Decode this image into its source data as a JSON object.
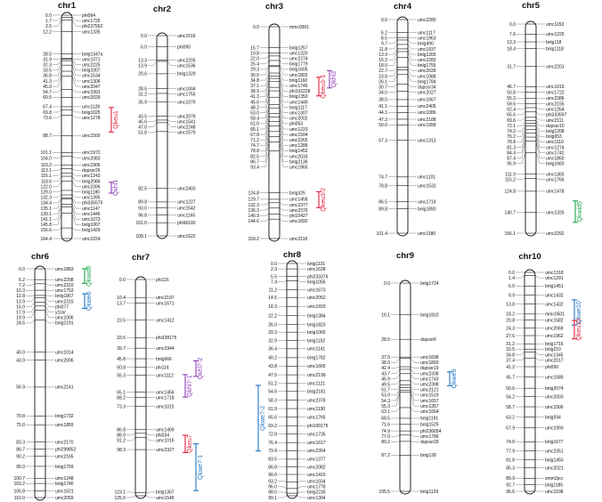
{
  "chromosomes": [
    {
      "name": "chr1",
      "max": 164.4,
      "markers": [
        [
          "0.0",
          "phi064"
        ],
        [
          "1.7",
          "umc1725"
        ],
        [
          "3.5",
          "phi227562"
        ],
        [
          "12.2",
          "umc1335"
        ],
        [
          "28.5",
          "bnlg1347a"
        ],
        [
          "31.9",
          "umc1071"
        ],
        [
          "32.3",
          "umc2225"
        ],
        [
          "33.5",
          "bnlg1007"
        ],
        [
          "36.8",
          "umc1534"
        ],
        [
          "41.3",
          "umc1306"
        ],
        [
          "45.0",
          "umc2047"
        ],
        [
          "54.7",
          "umc1991"
        ],
        [
          "60.5",
          "umc2029"
        ],
        [
          "67.4",
          "umc1128"
        ],
        [
          "69.8",
          "bnlg1025"
        ],
        [
          "73.6",
          "umc1278"
        ],
        [
          "88.7",
          "umc1500"
        ],
        [
          "101.1",
          "umc1972"
        ],
        [
          "104.0",
          "umc2083"
        ],
        [
          "110.2",
          "umc1906"
        ],
        [
          "113.1",
          "dupssr26"
        ],
        [
          "116.1",
          "umc1243"
        ],
        [
          "118.6",
          "bnlg2086"
        ],
        [
          "122.0",
          "umc2396"
        ],
        [
          "129.0",
          "bnlg1180"
        ],
        [
          "132.3",
          "umc1395"
        ],
        [
          "134.4",
          "phi335575"
        ],
        [
          "135.1",
          "umc1147"
        ],
        [
          "139.1",
          "umc1446"
        ],
        [
          "141.1",
          "umc1073"
        ],
        [
          "145.8",
          "bnlg1007"
        ],
        [
          "156.6",
          "bnlg1429"
        ],
        [
          "164.4",
          "umc2224"
        ]
      ]
    },
    {
      "name": "chr2",
      "max": 108.1,
      "markers": [
        [
          "0.0",
          "umc1516"
        ],
        [
          "6.0",
          "phi090"
        ],
        [
          "13.3",
          "umc2205"
        ],
        [
          "13.9",
          "umc1536"
        ],
        [
          "20.6",
          "bnlg1329"
        ],
        [
          "28.6",
          "umc1004"
        ],
        [
          "31.2",
          "umc1755"
        ],
        [
          "35.9",
          "umc1079"
        ],
        [
          "43.5",
          "umc2079"
        ],
        [
          "45.6",
          "umc1541"
        ],
        [
          "47.0",
          "umc2248"
        ],
        [
          "51.8",
          "umc1579"
        ],
        [
          "82.5",
          "umc2403"
        ],
        [
          "89.8",
          "umc1227"
        ],
        [
          "93.0",
          "umc1542"
        ],
        [
          "96.8",
          "umc1165"
        ],
        [
          "101.0",
          "phi96100"
        ],
        [
          "108.1",
          "umc1622"
        ]
      ]
    },
    {
      "name": "chr3",
      "max": 159.2,
      "markers": [
        [
          "0.0",
          "mmc0001"
        ],
        [
          "15.7",
          "bnlg1257"
        ],
        [
          "19.8",
          "umc1320"
        ],
        [
          "22.0",
          "umc2274"
        ],
        [
          "25.4",
          "bnlg1779"
        ],
        [
          "29.3",
          "bnlg1605"
        ],
        [
          "30.0",
          "umc1802"
        ],
        [
          "34.8",
          "bnlg1160"
        ],
        [
          "37.1",
          "umc1745"
        ],
        [
          "38.9",
          "phi102228"
        ],
        [
          "41.3",
          "bnlg1350"
        ],
        [
          "45.6",
          "umc1449"
        ],
        [
          "48.2",
          "bnlg1117"
        ],
        [
          "53.0",
          "umc1307"
        ],
        [
          "58.4",
          "umc2002"
        ],
        [
          "61.0",
          "phi053"
        ],
        [
          "65.1",
          "umc1223"
        ],
        [
          "67.8",
          "umc1504"
        ],
        [
          "71.2",
          "umc2265"
        ],
        [
          "74.7",
          "umc1286"
        ],
        [
          "78.8",
          "bnlg1452"
        ],
        [
          "82.5",
          "umc2033"
        ],
        [
          "86.7",
          "bnlg2136"
        ],
        [
          "93.4",
          "umc1965"
        ],
        [
          "124.8",
          "bnlg325"
        ],
        [
          "129.7",
          "umc1458"
        ],
        [
          "132.3",
          "umc2377"
        ],
        [
          "136.3",
          "umc2376"
        ],
        [
          "140.9",
          "phi10427"
        ],
        [
          "144.6",
          "umc1892"
        ],
        [
          "159.2",
          "umc2118"
        ]
      ]
    },
    {
      "name": "chr4",
      "max": 101.4,
      "markers": [
        [
          "0.0",
          "umc2280"
        ],
        [
          "6.2",
          "umc1117"
        ],
        [
          "8.5",
          "umc1963"
        ],
        [
          "9.7",
          "bnlg490"
        ],
        [
          "11.8",
          "umc1937"
        ],
        [
          "13.9",
          "bnlg1265"
        ],
        [
          "15.2",
          "umc2283"
        ],
        [
          "18.0",
          "bnlg1755"
        ],
        [
          "22.7",
          "umc2039"
        ],
        [
          "23.8",
          "umc1088"
        ],
        [
          "26.1",
          "bnlg1784"
        ],
        [
          "30.7",
          "dupssr34"
        ],
        [
          "34.0",
          "umc2027"
        ],
        [
          "38.0",
          "umc1667"
        ],
        [
          "41.1",
          "umc2405"
        ],
        [
          "44.1",
          "umc1086"
        ],
        [
          "47.3",
          "umc2188"
        ],
        [
          "50.0",
          "umc1999"
        ],
        [
          "57.3",
          "umc1313"
        ],
        [
          "74.7",
          "umc1101"
        ],
        [
          "78.8",
          "umc1532"
        ],
        [
          "86.5",
          "umc1719"
        ],
        [
          "89.8",
          "bnlg1890"
        ],
        [
          "101.4",
          "umc1180"
        ]
      ]
    },
    {
      "name": "chr5",
      "max": 156.1,
      "markers": [
        [
          "0.0",
          "umc1153"
        ],
        [
          "7.6",
          "umc1225"
        ],
        [
          "13.3",
          "bnlg118"
        ],
        [
          "18.4",
          "bnlg1118"
        ],
        [
          "31.7",
          "umc2201"
        ],
        [
          "46.7",
          "umc1019"
        ],
        [
          "50.8",
          "umc1722"
        ],
        [
          "55.3",
          "umc2386"
        ],
        [
          "59.6",
          "umc2155"
        ],
        [
          "62.4",
          "umc1264"
        ],
        [
          "65.6",
          "phi333597"
        ],
        [
          "69.6",
          "umc2111"
        ],
        [
          "72.1",
          "dupssr10"
        ],
        [
          "74.2",
          "bnlg1208"
        ],
        [
          "76.2",
          "bnlg653"
        ],
        [
          "78.8",
          "umc1110"
        ],
        [
          "81.3",
          "umc1274"
        ],
        [
          "84.4",
          "umc1742"
        ],
        [
          "87.4",
          "umc1850"
        ],
        [
          "95.9",
          "bnlg1660"
        ],
        [
          "111.9",
          "umc1365"
        ],
        [
          "115.2",
          "umc1766"
        ],
        [
          "124.8",
          "umc1478"
        ],
        [
          "140.7",
          "umc1325"
        ],
        [
          "156.1",
          "umc2292"
        ]
      ]
    },
    {
      "name": "chr6",
      "max": 110.0,
      "markers": [
        [
          "0.0",
          "umc1883"
        ],
        [
          "5.2",
          "umc2208"
        ],
        [
          "7.2",
          "umc2310"
        ],
        [
          "10.3",
          "umc1753"
        ],
        [
          "12.8",
          "bnlg1867"
        ],
        [
          "13.9",
          "umc2315"
        ],
        [
          "16.0",
          "phi077"
        ],
        [
          "17.9",
          "y1ssr"
        ],
        [
          "19.9",
          "umc1006"
        ],
        [
          "24.6",
          "bnlg2191"
        ],
        [
          "40.0",
          "umc1014"
        ],
        [
          "43.9",
          "umc2006"
        ],
        [
          "56.9",
          "umc2141"
        ],
        [
          "70.8",
          "bnlg1732"
        ],
        [
          "75.0",
          "umc1859"
        ],
        [
          "83.3",
          "umc2170"
        ],
        [
          "86.7",
          "phi299852"
        ],
        [
          "90.2",
          "umc2165"
        ],
        [
          "95.0",
          "bnlg1759"
        ],
        [
          "100.7",
          "umc1248"
        ],
        [
          "103.2",
          "bnlg1740"
        ],
        [
          "106.8",
          "umc1621"
        ],
        [
          "110.0",
          "umc2059"
        ]
      ]
    },
    {
      "name": "chr7",
      "max": 125.0,
      "markers": [
        [
          "0.0",
          "phi116"
        ],
        [
          "10.4",
          "umc2197"
        ],
        [
          "13.7",
          "umc1671"
        ],
        [
          "23.5",
          "umc1412"
        ],
        [
          "33.6",
          "phi328175"
        ],
        [
          "39.7",
          "umc1944"
        ],
        [
          "45.8",
          "bnlg666"
        ],
        [
          "50.8",
          "phi114"
        ],
        [
          "55.3",
          "umc1112"
        ],
        [
          "65.1",
          "umc1456"
        ],
        [
          "68.2",
          "umc1718"
        ],
        [
          "73.3",
          "umc1015"
        ],
        [
          "86.8",
          "umc1409"
        ],
        [
          "88.9",
          "phi034"
        ],
        [
          "91.2",
          "umc1016"
        ],
        [
          "98.3",
          "umc2327"
        ],
        [
          "123.1",
          "bnlg1367"
        ],
        [
          "125.0",
          "umc1545"
        ]
      ]
    },
    {
      "name": "chr8",
      "max": 99.1,
      "markers": [
        [
          "0.0",
          "bnlg1131"
        ],
        [
          "2.3",
          "umc1638"
        ],
        [
          "5.5",
          "phi233376"
        ],
        [
          "7.4",
          "bnlg1056"
        ],
        [
          "11.2",
          "umc1673"
        ],
        [
          "14.5",
          "umc2052"
        ],
        [
          "18.3",
          "umc1933"
        ],
        [
          "22.2",
          "bnlg1384"
        ],
        [
          "26.0",
          "bnlg1823"
        ],
        [
          "29.3",
          "bnlg1065"
        ],
        [
          "32.9",
          "bnlg1152"
        ],
        [
          "36.4",
          "umc1141"
        ],
        [
          "40.2",
          "bnlg1782"
        ],
        [
          "43.8",
          "umc1665"
        ],
        [
          "47.5",
          "umc2199"
        ],
        [
          "51.2",
          "umc1121"
        ],
        [
          "54.6",
          "bnlg2181"
        ],
        [
          "58.3",
          "umc2378"
        ],
        [
          "61.9",
          "umc1130"
        ],
        [
          "65.6",
          "umc1765"
        ],
        [
          "69.2",
          "phi100175"
        ],
        [
          "72.8",
          "umc1735"
        ],
        [
          "76.4",
          "umc1617"
        ],
        [
          "79.9",
          "umc2354"
        ],
        [
          "83.5",
          "umc1377"
        ],
        [
          "86.8",
          "umc2082"
        ],
        [
          "90.0",
          "umc1415"
        ],
        [
          "93.2",
          "umc1034"
        ],
        [
          "96.0",
          "umc1778"
        ],
        [
          "98.0",
          "bnlg2235"
        ],
        [
          "99.1",
          "umc1304"
        ]
      ]
    },
    {
      "name": "chr9",
      "max": 105.5,
      "markers": [
        [
          "0.0",
          "bnlg1724"
        ],
        [
          "16.1",
          "bnlg1810"
        ],
        [
          "28.5",
          "dupssr6"
        ],
        [
          "37.5",
          "umc1698"
        ],
        [
          "38.0",
          "umc1893"
        ],
        [
          "42.4",
          "dupssr19"
        ],
        [
          "43.7",
          "umc2338"
        ],
        [
          "45.9",
          "umc1743"
        ],
        [
          "49.5",
          "umc2398"
        ],
        [
          "51.7",
          "umc2121"
        ],
        [
          "53.0",
          "umc1519"
        ],
        [
          "54.3",
          "umc1657"
        ],
        [
          "55.3",
          "umc1357"
        ],
        [
          "63.1",
          "umc1654"
        ],
        [
          "68.5",
          "bnlg1191"
        ],
        [
          "71.6",
          "bnlg1525"
        ],
        [
          "74.9",
          "phi236654"
        ],
        [
          "77.0",
          "umc1789"
        ],
        [
          "80.2",
          "dupssr29"
        ],
        [
          "87.2",
          "bnlg128"
        ],
        [
          "105.5",
          "bnlg1129"
        ]
      ]
    },
    {
      "name": "chr10",
      "max": 95.6,
      "markers": [
        [
          "0.0",
          "umc1318"
        ],
        [
          "1.4",
          "umc1291"
        ],
        [
          "6.0",
          "bnlg1451"
        ],
        [
          "9.9",
          "umc1432"
        ],
        [
          "13.8",
          "umc1432"
        ],
        [
          "18.2",
          "mmc0501"
        ],
        [
          "20.8",
          "umc1582"
        ],
        [
          "24.3",
          "umc2069"
        ],
        [
          "27.6",
          "umc1962"
        ],
        [
          "31.2",
          "bnlg1716"
        ],
        [
          "33.5",
          "bnlg210"
        ],
        [
          "34.8",
          "umc1345"
        ],
        [
          "37.4",
          "umc2017"
        ],
        [
          "41.2",
          "phi050"
        ],
        [
          "45.7",
          "umc1589"
        ],
        [
          "50.6",
          "bnlg2074"
        ],
        [
          "54.2",
          "umc2003"
        ],
        [
          "58.7",
          "umc1506"
        ],
        [
          "63.2",
          "bnlg594"
        ],
        [
          "67.9",
          "umc1993"
        ],
        [
          "74.0",
          "bnlg1677"
        ],
        [
          "77.9",
          "umc2351"
        ],
        [
          "81.8",
          "bnlg1450"
        ],
        [
          "85.3",
          "umc2021"
        ],
        [
          "89.9",
          "zmm2pcr"
        ],
        [
          "92.7",
          "bnlg1185"
        ],
        [
          "95.6",
          "umc1038"
        ]
      ]
    }
  ],
  "qtls": [
    {
      "label": "Qkeu1",
      "chrom": "chr1",
      "from": 68.0,
      "to": 86.0,
      "side": "right",
      "color": "#e0203c"
    },
    {
      "label": "Qkhl1",
      "chrom": "chr1",
      "from": 123.0,
      "to": 131.0,
      "side": "right",
      "color": "#8b3fb8"
    },
    {
      "label": "Qkeu3-1",
      "chrom": "chr3",
      "from": 38.0,
      "to": 52.0,
      "side": "right",
      "color": "#e0203c"
    },
    {
      "label": "Qkhl3",
      "chrom": "chr3",
      "from": 33.0,
      "to": 46.0,
      "side": "right2",
      "color": "#8b3fb8"
    },
    {
      "label": "Qkeu3-2",
      "chrom": "chr3",
      "from": 124.0,
      "to": 136.0,
      "side": "right",
      "color": "#e0203c"
    },
    {
      "label": "Qkwid5",
      "chrom": "chr5",
      "from": 132.0,
      "to": 148.0,
      "side": "right",
      "color": "#1aa64a"
    },
    {
      "label": "Qkwid6",
      "chrom": "chr6",
      "from": 0.0,
      "to": 7.0,
      "side": "right",
      "color": "#1aa64a"
    },
    {
      "label": "Qkwe6",
      "chrom": "chr6",
      "from": 12.0,
      "to": 19.0,
      "side": "right",
      "color": "#1f77c4"
    },
    {
      "label": "Qkhl7-1",
      "chrom": "chr7",
      "from": 55.0,
      "to": 68.0,
      "side": "right",
      "color": "#8b3fb8"
    },
    {
      "label": "Qkhl7-2",
      "chrom": "chr7",
      "from": 47.0,
      "to": 56.0,
      "side": "right2",
      "color": "#8b3fb8"
    },
    {
      "label": "Qkeu7",
      "chrom": "chr7",
      "from": 90.0,
      "to": 100.0,
      "side": "right",
      "color": "#e0203c"
    },
    {
      "label": "Qkwe7-1",
      "chrom": "chr7",
      "from": 95.0,
      "to": 122.0,
      "side": "right2",
      "color": "#1f77c4"
    },
    {
      "label": "Qkwe7-2",
      "chrom": "chr8",
      "from": 52.0,
      "to": 80.0,
      "side": "left",
      "color": "#1f77c4"
    },
    {
      "label": "Qkwe9",
      "chrom": "chr9",
      "from": 45.0,
      "to": 52.0,
      "side": "right",
      "color": "#1f77c4"
    },
    {
      "label": "Qkwe10",
      "chrom": "chr10",
      "from": 12.0,
      "to": 23.0,
      "side": "right",
      "color": "#1f77c4"
    },
    {
      "label": "Qkeu10",
      "chrom": "chr10",
      "from": 21.0,
      "to": 29.0,
      "side": "right",
      "color": "#e0203c"
    }
  ]
}
